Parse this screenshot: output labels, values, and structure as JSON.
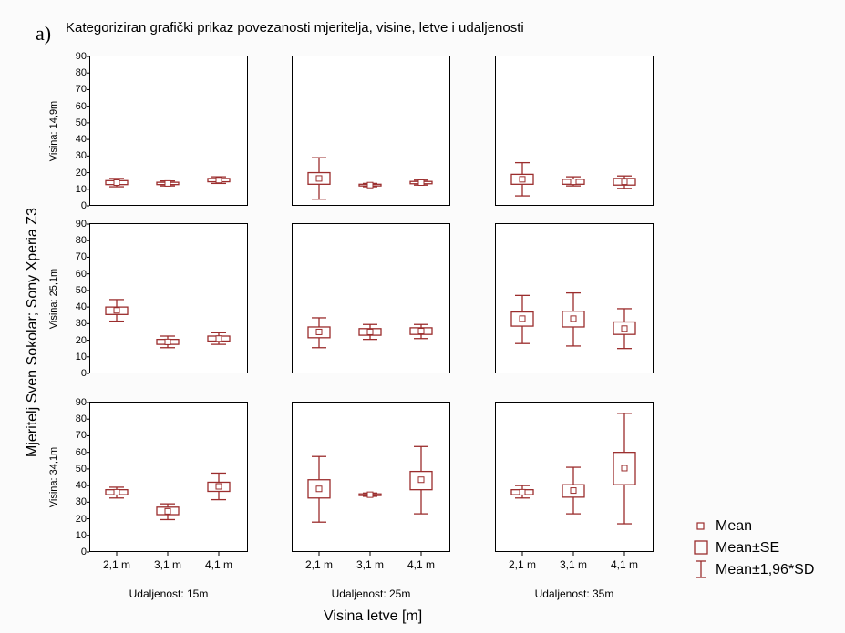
{
  "panel_label": "a)",
  "chart_data": {
    "type": "boxplot",
    "title": "Kategoriziran grafički prikaz povezanosti mjeritelja, visine, letve i udaljenosti",
    "ylabel": "Mjeritelj Sven Sokolar; Sony Xperia Z3",
    "xlabel": "Visina letve [m]",
    "ylim": [
      0,
      90
    ],
    "yticks": [
      "0",
      "10",
      "20",
      "30",
      "40",
      "50",
      "60",
      "70",
      "80",
      "90"
    ],
    "categories": [
      "2,1 m",
      "3,1 m",
      "4,1 m"
    ],
    "columns": [
      "Udaljenost: 15m",
      "Udaljenost: 25m",
      "Udaljenost: 35m"
    ],
    "rows": [
      "Visina: 14,9m",
      "Visina: 25,1m",
      "Visina: 34,1m"
    ],
    "stat_series": [
      "Mean",
      "Mean±SE",
      "Mean±1,96*SD"
    ],
    "color": "#9b2d2d",
    "cells": [
      [
        [
          {
            "mean": 14,
            "se": [
              12.8,
              15.2
            ],
            "sd": [
              11.5,
              16.5
            ]
          },
          {
            "mean": 13.5,
            "se": [
              12.8,
              14.2
            ],
            "sd": [
              12,
              15
            ]
          },
          {
            "mean": 15.5,
            "se": [
              14.5,
              16.5
            ],
            "sd": [
              13.5,
              17.5
            ]
          }
        ],
        [
          {
            "mean": 16.5,
            "se": [
              13,
              20
            ],
            "sd": [
              4,
              29
            ]
          },
          {
            "mean": 12.5,
            "se": [
              12,
              13
            ],
            "sd": [
              11.5,
              13.5
            ]
          },
          {
            "mean": 14,
            "se": [
              13.3,
              14.7
            ],
            "sd": [
              12.5,
              15.5
            ]
          }
        ],
        [
          {
            "mean": 16,
            "se": [
              13,
              19
            ],
            "sd": [
              6,
              26
            ]
          },
          {
            "mean": 14.5,
            "se": [
              13,
              16
            ],
            "sd": [
              12,
              17.5
            ]
          },
          {
            "mean": 14.5,
            "se": [
              12.5,
              16.5
            ],
            "sd": [
              10.5,
              18
            ]
          }
        ]
      ],
      [
        [
          {
            "mean": 38,
            "se": [
              35.5,
              40
            ],
            "sd": [
              31.5,
              44.5
            ]
          },
          {
            "mean": 19,
            "se": [
              17.5,
              20.5
            ],
            "sd": [
              15.5,
              22.5
            ]
          },
          {
            "mean": 21,
            "se": [
              19.5,
              22.5
            ],
            "sd": [
              17.5,
              24.5
            ]
          }
        ],
        [
          {
            "mean": 25,
            "se": [
              21.5,
              28
            ],
            "sd": [
              15.5,
              33.5
            ]
          },
          {
            "mean": 25,
            "se": [
              23,
              27
            ],
            "sd": [
              20.5,
              29.5
            ]
          },
          {
            "mean": 25.5,
            "se": [
              23.5,
              27.5
            ],
            "sd": [
              21,
              29.5
            ]
          }
        ],
        [
          {
            "mean": 33,
            "se": [
              28.5,
              37
            ],
            "sd": [
              18,
              47
            ]
          },
          {
            "mean": 33,
            "se": [
              28,
              37.5
            ],
            "sd": [
              16.5,
              48.5
            ]
          },
          {
            "mean": 27,
            "se": [
              23.5,
              31
            ],
            "sd": [
              15,
              39
            ]
          }
        ]
      ],
      [
        [
          {
            "mean": 36,
            "se": [
              34.5,
              37.5
            ],
            "sd": [
              32.5,
              39
            ]
          },
          {
            "mean": 24.5,
            "se": [
              22.5,
              27
            ],
            "sd": [
              19.5,
              29
            ]
          },
          {
            "mean": 39.5,
            "se": [
              36.5,
              42
            ],
            "sd": [
              31.5,
              47.5
            ]
          }
        ],
        [
          {
            "mean": 38,
            "se": [
              32.5,
              43.5
            ],
            "sd": [
              18,
              57.5
            ]
          },
          {
            "mean": 34.5,
            "se": [
              34,
              35
            ],
            "sd": [
              33.5,
              35.5
            ]
          },
          {
            "mean": 43.5,
            "se": [
              37.5,
              48.5
            ],
            "sd": [
              23,
              63.5
            ]
          }
        ],
        [
          {
            "mean": 36,
            "se": [
              34.5,
              37.5
            ],
            "sd": [
              32.5,
              40
            ]
          },
          {
            "mean": 37,
            "se": [
              33,
              40.5
            ],
            "sd": [
              23,
              51
            ]
          },
          {
            "mean": 50.5,
            "se": [
              40.5,
              60
            ],
            "sd": [
              17,
              83.5
            ]
          }
        ]
      ]
    ]
  }
}
